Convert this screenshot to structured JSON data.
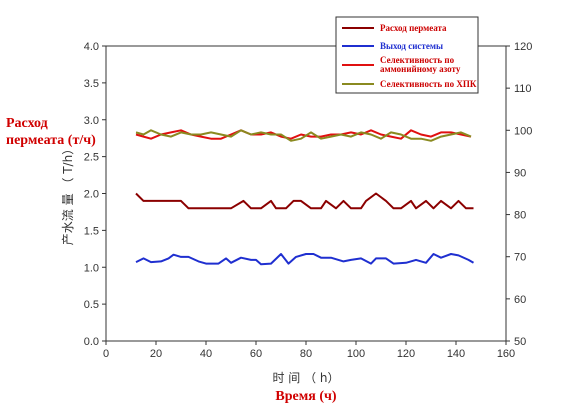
{
  "chart_data": {
    "type": "line",
    "x_axis": {
      "label_original": "时 间 （ h）",
      "label_translation": "Время (ч)",
      "range": [
        0,
        160
      ],
      "ticks": [
        "0",
        "20",
        "40",
        "60",
        "80",
        "100",
        "120",
        "140",
        "160"
      ]
    },
    "y_left": {
      "label_original": "产水流 量 （ T/h）",
      "label_translation": [
        "Расход",
        "пермеата (т/ч)"
      ],
      "range": [
        0,
        4
      ],
      "ticks": [
        "0.0",
        "0.5",
        "1.0",
        "1.5",
        "2.0",
        "2.5",
        "3.0",
        "3.5",
        "4.0"
      ]
    },
    "y_right": {
      "range": [
        50,
        120
      ],
      "ticks": [
        "50",
        "60",
        "70",
        "80",
        "90",
        "100",
        "110",
        "120"
      ]
    },
    "legend_position": "top-right",
    "legend": [
      {
        "label": "Расход пермеата",
        "color": "#8b0000"
      },
      {
        "label": "Выход системы",
        "color": "#1f2fd0"
      },
      {
        "label": "Селективность по аммонийному азоту",
        "color": "#e01010"
      },
      {
        "label": "Селективность по ХПК",
        "color": "#8a8a20"
      }
    ],
    "series": [
      {
        "name": "Расход пермеата",
        "axis": "left",
        "color": "#8b0000",
        "x": [
          12,
          15,
          20,
          25,
          30,
          33,
          40,
          45,
          50,
          55,
          58,
          62,
          66,
          68,
          72,
          75,
          78,
          82,
          86,
          88,
          92,
          95,
          98,
          102,
          104,
          108,
          112,
          115,
          118,
          122,
          124,
          128,
          131,
          134,
          138,
          141,
          144,
          147
        ],
        "y": [
          2.0,
          1.9,
          1.9,
          1.9,
          1.9,
          1.8,
          1.8,
          1.8,
          1.8,
          1.9,
          1.8,
          1.8,
          1.9,
          1.8,
          1.8,
          1.9,
          1.9,
          1.8,
          1.8,
          1.9,
          1.8,
          1.9,
          1.8,
          1.8,
          1.9,
          2.0,
          1.9,
          1.8,
          1.8,
          1.9,
          1.8,
          1.9,
          1.8,
          1.9,
          1.8,
          1.9,
          1.8,
          1.8
        ]
      },
      {
        "name": "Выход системы",
        "axis": "left",
        "color": "#1f2fd0",
        "x": [
          12,
          15,
          18,
          22,
          25,
          27,
          30,
          33,
          37,
          40,
          45,
          48,
          50,
          54,
          58,
          60,
          62,
          66,
          70,
          73,
          76,
          80,
          83,
          86,
          90,
          95,
          98,
          102,
          106,
          108,
          112,
          115,
          120,
          124,
          128,
          131,
          134,
          138,
          141,
          145,
          147
        ],
        "y": [
          1.07,
          1.12,
          1.07,
          1.08,
          1.12,
          1.17,
          1.14,
          1.14,
          1.08,
          1.05,
          1.05,
          1.12,
          1.06,
          1.13,
          1.1,
          1.1,
          1.04,
          1.05,
          1.18,
          1.05,
          1.14,
          1.18,
          1.18,
          1.13,
          1.13,
          1.08,
          1.1,
          1.12,
          1.05,
          1.12,
          1.12,
          1.05,
          1.06,
          1.1,
          1.06,
          1.18,
          1.13,
          1.18,
          1.16,
          1.1,
          1.06
        ]
      },
      {
        "name": "Селективность по аммонийному азоту",
        "axis": "right",
        "color": "#e01010",
        "x": [
          12,
          15,
          18,
          22,
          26,
          30,
          34,
          38,
          42,
          46,
          50,
          54,
          58,
          62,
          66,
          70,
          74,
          78,
          82,
          86,
          90,
          94,
          98,
          102,
          106,
          110,
          114,
          118,
          122,
          126,
          130,
          134,
          138,
          142,
          146
        ],
        "y": [
          99.0,
          98.5,
          98.0,
          99.0,
          99.5,
          100.0,
          99.0,
          98.5,
          98.0,
          98.0,
          99.0,
          100.0,
          99.0,
          99.0,
          99.5,
          98.5,
          98.0,
          99.0,
          98.5,
          98.5,
          99.0,
          99.0,
          99.5,
          99.0,
          100.0,
          99.0,
          98.5,
          98.0,
          100.0,
          99.0,
          98.5,
          99.5,
          99.5,
          99.0,
          98.5
        ]
      },
      {
        "name": "Селективность по ХПК",
        "axis": "right",
        "color": "#8a8a20",
        "x": [
          12,
          15,
          18,
          22,
          26,
          30,
          34,
          38,
          42,
          46,
          50,
          54,
          58,
          62,
          66,
          70,
          74,
          78,
          82,
          86,
          90,
          94,
          98,
          102,
          106,
          110,
          114,
          118,
          122,
          126,
          130,
          134,
          138,
          142,
          146
        ],
        "y": [
          99.5,
          99.0,
          100.0,
          99.0,
          98.5,
          99.5,
          99.0,
          99.0,
          99.5,
          99.0,
          98.5,
          100.0,
          99.0,
          99.5,
          99.0,
          99.0,
          97.5,
          98.0,
          99.5,
          98.0,
          98.5,
          99.0,
          98.5,
          99.5,
          99.0,
          98.0,
          99.5,
          99.0,
          98.0,
          98.0,
          97.5,
          98.5,
          99.0,
          99.5,
          98.5
        ]
      }
    ]
  }
}
